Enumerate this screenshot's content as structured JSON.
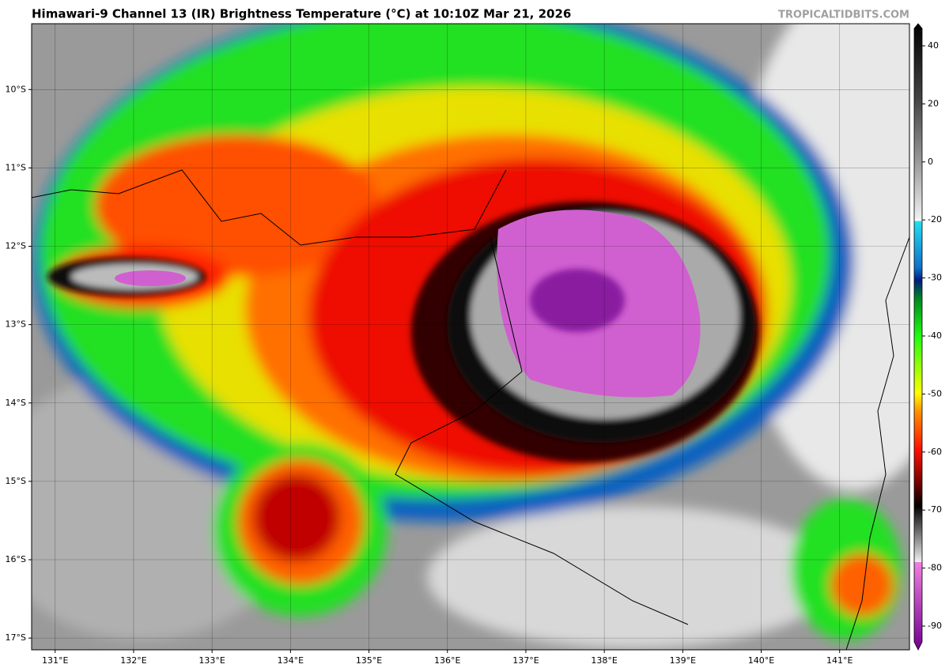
{
  "map": {
    "title": "Himawari-9 Channel 13 (IR) Brightness Temperature (°C) at 10:10Z Mar 21, 2026",
    "watermark": "TROPICALTIDBITS.COM",
    "xlim": [
      130.7,
      141.89
    ],
    "ylim": [
      -17.15,
      -9.16
    ],
    "xticks": [
      {
        "value": 131,
        "label": "131°E"
      },
      {
        "value": 132,
        "label": "132°E"
      },
      {
        "value": 133,
        "label": "133°E"
      },
      {
        "value": 134,
        "label": "134°E"
      },
      {
        "value": 135,
        "label": "135°E"
      },
      {
        "value": 136,
        "label": "136°E"
      },
      {
        "value": 137,
        "label": "137°E"
      },
      {
        "value": 138,
        "label": "138°E"
      },
      {
        "value": 139,
        "label": "139°E"
      },
      {
        "value": 140,
        "label": "140°E"
      },
      {
        "value": 141,
        "label": "141°E"
      }
    ],
    "yticks": [
      {
        "value": -10,
        "label": "10°S"
      },
      {
        "value": -11,
        "label": "11°S"
      },
      {
        "value": -12,
        "label": "12°S"
      },
      {
        "value": -13,
        "label": "13°S"
      },
      {
        "value": -14,
        "label": "14°S"
      },
      {
        "value": -15,
        "label": "15°S"
      },
      {
        "value": -16,
        "label": "16°S"
      },
      {
        "value": -17,
        "label": "17°S"
      }
    ],
    "colorbar_ticks": [
      40,
      20,
      0,
      -20,
      -30,
      -40,
      -50,
      -60,
      -70,
      -80,
      -90
    ],
    "grid": true
  }
}
